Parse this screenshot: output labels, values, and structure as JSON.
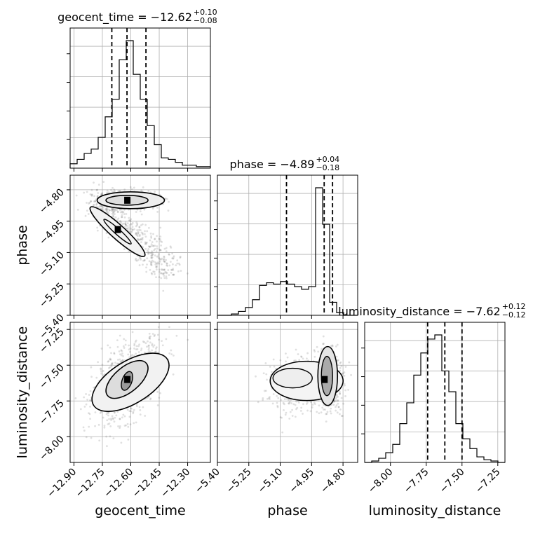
{
  "chart_data": {
    "type": "corner",
    "parameters": [
      {
        "name": "geocent_time",
        "title_text": "geocent_time = −12.62",
        "err_plus": "+0.10",
        "err_minus": "−0.08",
        "range": [
          -12.92,
          -12.18
        ],
        "ticks": [
          -12.9,
          -12.75,
          -12.6,
          -12.45,
          -12.3
        ],
        "tick_labels": [
          "−12.90",
          "−12.75",
          "−12.60",
          "−12.45",
          "−12.30"
        ],
        "quantiles": [
          -12.7,
          -12.62,
          -12.52
        ],
        "hist_edges_start": -12.92,
        "hist_bin_width": 0.037,
        "hist_counts": [
          0.03,
          0.06,
          0.1,
          0.13,
          0.21,
          0.35,
          0.47,
          0.74,
          0.87,
          0.64,
          0.47,
          0.29,
          0.16,
          0.07,
          0.06,
          0.04,
          0.02,
          0.02,
          0.01,
          0.01
        ]
      },
      {
        "name": "phase",
        "title_text": "phase = −4.89",
        "err_plus": "+0.04",
        "err_minus": "−0.18",
        "range": [
          -5.4,
          -4.73
        ],
        "ticks": [
          -5.4,
          -5.25,
          -5.1,
          -4.95,
          -4.8
        ],
        "tick_labels": [
          "−5.40",
          "−5.25",
          "−5.10",
          "−4.95",
          "−4.80"
        ],
        "quantiles": [
          -5.07,
          -4.89,
          -4.85
        ],
        "hist_edges_start": -5.4,
        "hist_bin_width": 0.0335,
        "hist_counts": [
          0.0,
          0.0,
          0.01,
          0.03,
          0.06,
          0.12,
          0.23,
          0.25,
          0.24,
          0.26,
          0.24,
          0.22,
          0.2,
          0.22,
          0.98,
          0.7,
          0.1,
          0.02,
          0.0,
          0.0
        ]
      },
      {
        "name": "luminosity_distance",
        "title_text": "luminosity_distance = −7.62",
        "err_plus": "+0.12",
        "err_minus": "−0.12",
        "range": [
          -8.18,
          -7.2
        ],
        "ticks": [
          -8.0,
          -7.75,
          -7.5,
          -7.25
        ],
        "tick_labels": [
          "−8.00",
          "−7.75",
          "−7.50",
          "−7.25"
        ],
        "quantiles": [
          -7.74,
          -7.62,
          -7.5
        ],
        "hist_edges_start": -8.18,
        "hist_bin_width": 0.049,
        "hist_counts": [
          0.0,
          0.01,
          0.03,
          0.07,
          0.13,
          0.28,
          0.43,
          0.63,
          0.79,
          0.89,
          0.92,
          0.66,
          0.51,
          0.28,
          0.17,
          0.1,
          0.04,
          0.02,
          0.01,
          0.0
        ]
      }
    ],
    "panels_2d": [
      {
        "x": "geocent_time",
        "y": "phase",
        "density_peaks": [
          [
            -12.62,
            -4.85
          ],
          [
            -12.67,
            -4.99
          ]
        ]
      },
      {
        "x": "geocent_time",
        "y": "luminosity_distance",
        "density_peaks": [
          [
            -12.62,
            -7.6
          ]
        ]
      },
      {
        "x": "phase",
        "y": "luminosity_distance",
        "density_peaks": [
          [
            -4.89,
            -7.6
          ]
        ]
      }
    ],
    "grid": true,
    "xlabels": [
      "geocent_time",
      "phase",
      "luminosity_distance"
    ],
    "ylabels": [
      "",
      "phase",
      "luminosity_distance"
    ]
  }
}
